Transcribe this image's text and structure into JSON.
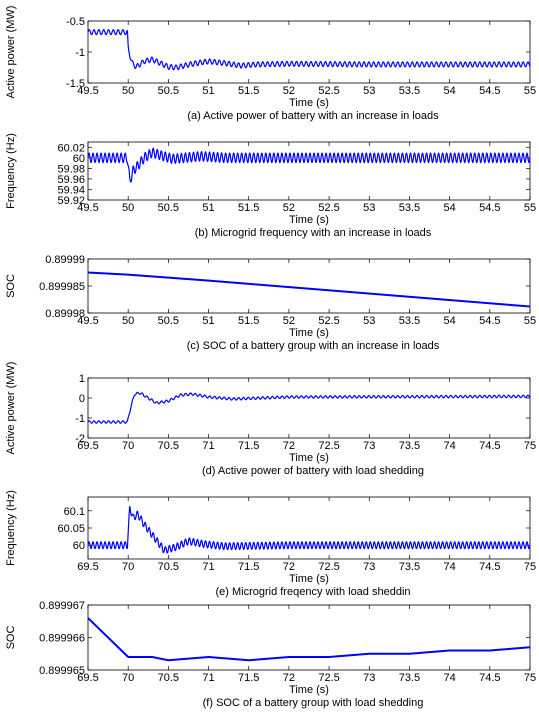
{
  "figure": {
    "panels_count": 6
  },
  "chart_data": [
    {
      "type": "line",
      "caption": "(a) Active power of battery with an increase in loads",
      "xlabel": "Time (s)",
      "ylabel": "Active power (MW)",
      "xlim": [
        49.5,
        55
      ],
      "ylim": [
        -1.5,
        -0.5
      ],
      "xticks": [
        "49.5",
        "50",
        "50.5",
        "51",
        "51.5",
        "52",
        "52.5",
        "53",
        "53.5",
        "54",
        "54.5",
        "55"
      ],
      "yticks": [
        "-0.5",
        "-1",
        "-1.5"
      ],
      "ytick_values": [
        -0.5,
        -1,
        -1.5
      ],
      "grid": false,
      "series": [
        {
          "color": "#0000ff",
          "x": [
            49.5,
            49.99,
            50.0,
            50.05,
            50.1,
            50.2,
            50.3,
            50.4,
            50.5,
            50.6,
            50.7,
            50.8,
            51.0,
            51.2,
            51.4,
            51.6,
            52.0,
            53.0,
            54.0,
            55.0
          ],
          "y": [
            -0.68,
            -0.68,
            -0.95,
            -1.18,
            -1.24,
            -1.15,
            -1.12,
            -1.18,
            -1.24,
            -1.25,
            -1.22,
            -1.19,
            -1.15,
            -1.18,
            -1.22,
            -1.2,
            -1.19,
            -1.2,
            -1.2,
            -1.2
          ],
          "ripple": 0.04,
          "ripple_period": 0.06
        }
      ]
    },
    {
      "type": "line",
      "caption": "(b) Microgrid frequency with an increase in loads",
      "xlabel": "Time (s)",
      "ylabel": "Frequency (Hz)",
      "xlim": [
        49.5,
        55
      ],
      "ylim": [
        59.92,
        60.03
      ],
      "xticks": [
        "49.5",
        "50",
        "50.5",
        "51",
        "51.5",
        "52",
        "52.5",
        "53",
        "53.5",
        "54",
        "54.5",
        "55"
      ],
      "yticks": [
        "60.02",
        "60",
        "59.98",
        "59.96",
        "59.94",
        "59.92"
      ],
      "ytick_values": [
        60.02,
        60.0,
        59.98,
        59.96,
        59.94,
        59.92
      ],
      "grid": false,
      "series": [
        {
          "color": "#0000ff",
          "x": [
            49.5,
            49.99,
            50.02,
            50.06,
            50.12,
            50.2,
            50.3,
            50.4,
            50.55,
            50.7,
            50.9,
            51.2,
            52.0,
            55.0
          ],
          "y": [
            60.0,
            60.0,
            59.955,
            59.975,
            59.985,
            60.0,
            60.01,
            60.005,
            59.998,
            60.0,
            60.003,
            60.0,
            60.0,
            60.0
          ],
          "ripple": 0.009,
          "ripple_period": 0.05
        }
      ]
    },
    {
      "type": "line",
      "caption": "(c) SOC of a battery group with an increase in loads",
      "xlabel": "Time (s)",
      "ylabel": "SOC",
      "xlim": [
        49.5,
        55
      ],
      "ylim": [
        0.89998,
        0.89999
      ],
      "xticks": [
        "49.5",
        "50",
        "50.5",
        "51",
        "51.5",
        "52",
        "52.5",
        "53",
        "53.5",
        "54",
        "54.5",
        "55"
      ],
      "yticks": [
        "0.89999",
        "0.899985",
        "0.89998"
      ],
      "ytick_values": [
        0.89999,
        0.899985,
        0.89998
      ],
      "grid": false,
      "series": [
        {
          "color": "#0000ff",
          "x": [
            49.5,
            50.0,
            51.0,
            52.0,
            53.0,
            54.0,
            55.0
          ],
          "y": [
            0.8999875,
            0.8999871,
            0.899986,
            0.8999848,
            0.8999836,
            0.8999824,
            0.8999812
          ],
          "ripple": 0,
          "ripple_period": 0
        }
      ]
    },
    {
      "type": "line",
      "caption": "(d) Active power of battery with load shedding",
      "xlabel": "Time (s)",
      "ylabel": "Active power (MW)",
      "xlim": [
        69.5,
        75
      ],
      "ylim": [
        -2,
        1
      ],
      "xticks": [
        "69.5",
        "70",
        "70.5",
        "71",
        "71.5",
        "72",
        "72.5",
        "73",
        "73.5",
        "74",
        "74.5",
        "75"
      ],
      "yticks": [
        "1",
        "0",
        "-1",
        "-2"
      ],
      "ytick_values": [
        1,
        0,
        -1,
        -2
      ],
      "grid": false,
      "series": [
        {
          "color": "#0000ff",
          "x": [
            69.5,
            69.99,
            70.03,
            70.08,
            70.15,
            70.25,
            70.35,
            70.5,
            70.65,
            70.8,
            71.0,
            71.3,
            72.0,
            75.0
          ],
          "y": [
            -1.2,
            -1.2,
            -0.5,
            0.2,
            0.25,
            0.0,
            -0.25,
            -0.15,
            0.15,
            0.2,
            0.05,
            -0.05,
            0.05,
            0.08
          ],
          "ripple": 0.06,
          "ripple_period": 0.06
        }
      ]
    },
    {
      "type": "line",
      "caption": "(e) Microgrid freqency with load sheddin",
      "xlabel": "Time (s)",
      "ylabel": "Frequency (Hz)",
      "xlim": [
        69.5,
        75
      ],
      "ylim": [
        59.96,
        60.14
      ],
      "xticks": [
        "69.5",
        "70",
        "70.5",
        "71",
        "71.5",
        "72",
        "72.5",
        "73",
        "73.5",
        "74",
        "74.5",
        "75"
      ],
      "yticks": [
        "60.1",
        "60.05",
        "60"
      ],
      "ytick_values": [
        60.1,
        60.05,
        60.0
      ],
      "grid": false,
      "series": [
        {
          "color": "#0000ff",
          "x": [
            69.5,
            69.99,
            70.02,
            70.06,
            70.12,
            70.2,
            70.3,
            70.45,
            70.6,
            70.75,
            70.95,
            71.2,
            72.0,
            75.0
          ],
          "y": [
            60.0,
            60.0,
            60.11,
            60.08,
            60.09,
            60.06,
            60.03,
            59.985,
            59.995,
            60.012,
            60.003,
            59.997,
            60.0,
            60.0
          ],
          "ripple": 0.01,
          "ripple_period": 0.05
        }
      ]
    },
    {
      "type": "line",
      "caption": "(f) SOC of a battery group with load shedding",
      "xlabel": "Time (s)",
      "ylabel": "SOC",
      "xlim": [
        69.5,
        75
      ],
      "ylim": [
        0.899965,
        0.899967
      ],
      "xticks": [
        "69.5",
        "70",
        "70.5",
        "71",
        "71.5",
        "72",
        "72.5",
        "73",
        "73.5",
        "74",
        "74.5",
        "75"
      ],
      "yticks": [
        "0.899967",
        "0.899966",
        "0.899965"
      ],
      "ytick_values": [
        0.899967,
        0.899966,
        0.899965
      ],
      "grid": false,
      "series": [
        {
          "color": "#0000ff",
          "x": [
            69.5,
            69.75,
            70.0,
            70.05,
            70.3,
            70.5,
            71.0,
            71.5,
            72.0,
            72.5,
            73.0,
            73.5,
            74.0,
            74.5,
            75.0
          ],
          "y": [
            0.8999666,
            0.899966,
            0.8999654,
            0.8999654,
            0.8999654,
            0.8999653,
            0.8999654,
            0.8999653,
            0.8999654,
            0.8999654,
            0.8999655,
            0.8999655,
            0.8999656,
            0.8999656,
            0.8999657
          ],
          "ripple": 0,
          "ripple_period": 0
        }
      ]
    }
  ]
}
